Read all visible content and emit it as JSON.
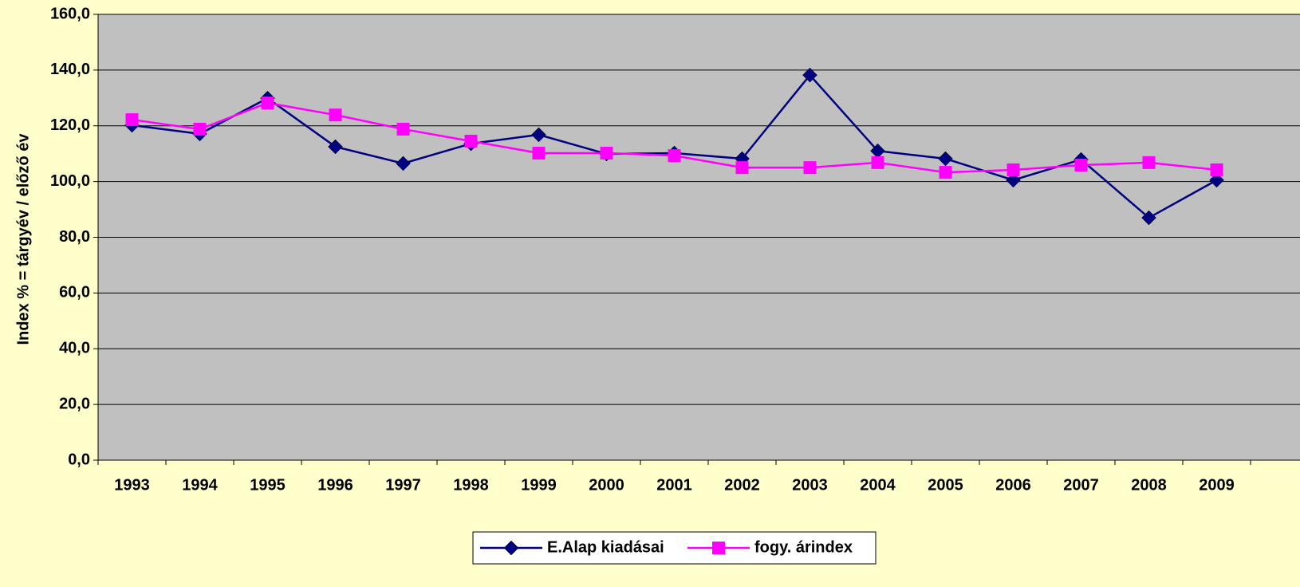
{
  "chart_data": {
    "type": "line",
    "y_label": "Index % = tárgyév / előző év",
    "categories": [
      "1993",
      "1994",
      "1995",
      "1996",
      "1997",
      "1998",
      "1999",
      "2000",
      "2001",
      "2002",
      "2003",
      "2004",
      "2005",
      "2006",
      "2007",
      "2008",
      "2009"
    ],
    "series": [
      {
        "name": "E.Alap kiadásai",
        "color": "#000080",
        "marker": "diamond",
        "values": [
          120.2,
          117.1,
          129.9,
          112.5,
          106.5,
          113.6,
          116.8,
          109.9,
          110.2,
          108.2,
          138.2,
          111.0,
          108.2,
          100.5,
          107.9,
          87.0,
          100.5
        ]
      },
      {
        "name": "fogy. árindex",
        "color": "#ff00ff",
        "marker": "square",
        "values": [
          122.2,
          118.8,
          128.2,
          123.9,
          118.8,
          114.5,
          110.2,
          110.2,
          109.3,
          105.0,
          105.0,
          106.8,
          103.3,
          104.2,
          105.9,
          106.8,
          104.2
        ]
      }
    ],
    "ylim": [
      0,
      160
    ],
    "yticks": [
      {
        "value": 0,
        "label": "0,0"
      },
      {
        "value": 20,
        "label": "20,0"
      },
      {
        "value": 40,
        "label": "40,0"
      },
      {
        "value": 60,
        "label": "60,0"
      },
      {
        "value": 80,
        "label": "80,0"
      },
      {
        "value": 100,
        "label": "100,0"
      },
      {
        "value": 120,
        "label": "120,0"
      },
      {
        "value": 140,
        "label": "140,0"
      },
      {
        "value": 160,
        "label": "160,0"
      }
    ],
    "grid": true,
    "legend": "bottom"
  }
}
